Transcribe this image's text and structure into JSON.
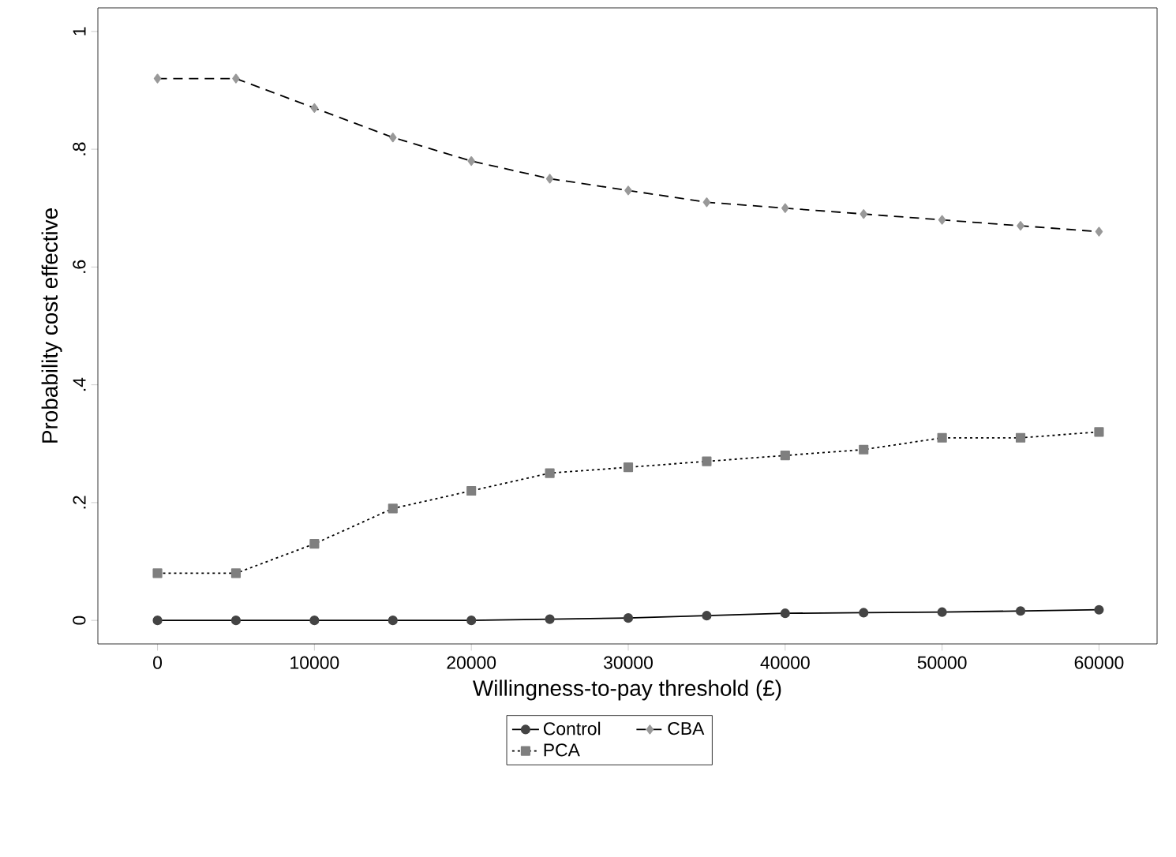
{
  "chart_data": {
    "type": "line",
    "xlabel": "Willingness-to-pay threshold (£)",
    "ylabel": "Probability cost effective",
    "x": [
      0,
      5000,
      10000,
      15000,
      20000,
      25000,
      30000,
      35000,
      40000,
      45000,
      50000,
      55000,
      60000
    ],
    "series": [
      {
        "name": "Control",
        "color": "#444444",
        "marker": "circle",
        "line_style": "solid",
        "values": [
          0,
          0,
          0,
          0,
          0,
          0.002,
          0.004,
          0.008,
          0.012,
          0.013,
          0.014,
          0.016,
          0.018
        ]
      },
      {
        "name": "CBA",
        "color": "#999999",
        "marker": "diamond",
        "line_style": "dashed",
        "values": [
          0.92,
          0.92,
          0.87,
          0.82,
          0.78,
          0.75,
          0.73,
          0.71,
          0.7,
          0.69,
          0.68,
          0.67,
          0.66
        ]
      },
      {
        "name": "PCA",
        "color": "#7f7f7f",
        "marker": "square",
        "line_style": "dotted",
        "values": [
          0.08,
          0.08,
          0.13,
          0.19,
          0.22,
          0.25,
          0.26,
          0.27,
          0.28,
          0.29,
          0.31,
          0.31,
          0.32
        ]
      }
    ],
    "xlim": [
      -3800,
      63700
    ],
    "ylim": [
      -0.04,
      1.04
    ],
    "xticks": [
      0,
      10000,
      20000,
      30000,
      40000,
      50000,
      60000
    ],
    "yticks": [
      0,
      {
        "value": 0.2,
        "label": ".2"
      },
      {
        "value": 0.4,
        "label": ".4"
      },
      {
        "value": 0.6,
        "label": ".6"
      },
      {
        "value": 0.8,
        "label": ".8"
      },
      1
    ],
    "legend": "bottom",
    "grid": false
  }
}
